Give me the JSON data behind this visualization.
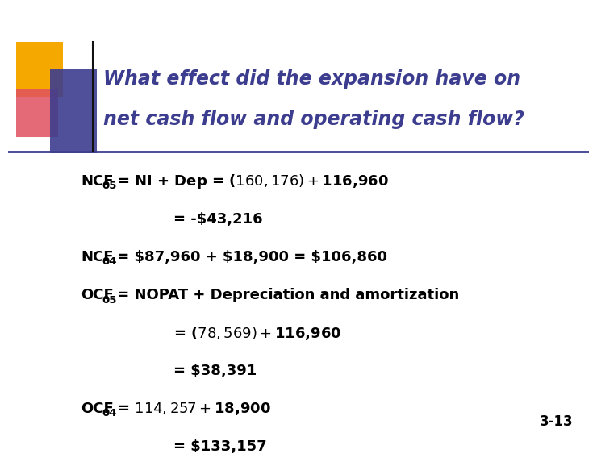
{
  "title_line1": "What effect did the expansion have on",
  "title_line2": "net cash flow and operating cash flow?",
  "title_color": "#3d3d8f",
  "background_color": "#ffffff",
  "slide_number": "3-13",
  "body_color": "#000000",
  "lines": [
    {
      "prefix": "NCF",
      "sub": "05",
      "text": " = NI + Dep = ($160,176) + $116,960",
      "indent": 0
    },
    {
      "prefix": "",
      "sub": "",
      "text": "= -$43,216",
      "indent": 1
    },
    {
      "prefix": "NCF",
      "sub": "04",
      "text": " = $87,960 + $18,900 = $106,860",
      "indent": 0
    },
    {
      "prefix": "OCF",
      "sub": "05",
      "text": " = NOPAT + Depreciation and amortization",
      "indent": 0
    },
    {
      "prefix": "",
      "sub": "",
      "text": "= ($78,569) + $116,960",
      "indent": 1
    },
    {
      "prefix": "",
      "sub": "",
      "text": "= $38,391",
      "indent": 1
    },
    {
      "prefix": "OCF",
      "sub": "04",
      "text": " = $114,257 + $18,900",
      "indent": 0
    },
    {
      "prefix": "",
      "sub": "",
      "text": "= $133,157",
      "indent": 1
    }
  ],
  "gold_color": "#F5A800",
  "pink_color": "#E05060",
  "blue_color": "#3d3d8f",
  "line_color": "#3d3d8f",
  "body_fontsize": 13,
  "sub_fontsize": 9.5,
  "title_fontsize": 17
}
